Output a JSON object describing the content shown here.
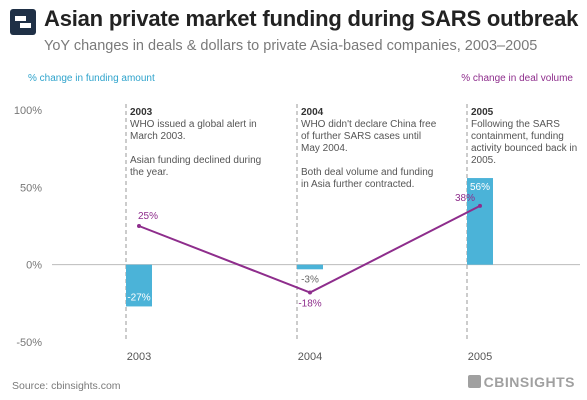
{
  "logo": {
    "name": "cbinsights-logo"
  },
  "header": {
    "title": "Asian private market funding during SARS outbreak",
    "subtitle": "YoY changes in deals & dollars to private Asia-based companies, 2003–2005"
  },
  "axes_legend": {
    "left": "% change in funding amount",
    "right": "% change in deal volume"
  },
  "colors": {
    "bar": "#4bb3d8",
    "line": "#8e2d8c",
    "bar_label": "#ffffff",
    "grid": "#bbbbbb",
    "dashed": "#9a9a9a"
  },
  "chart_data": {
    "type": "bar",
    "categories": [
      "2003",
      "2004",
      "2005"
    ],
    "ylim": [
      -50,
      100
    ],
    "yticks": [
      -50,
      0,
      50,
      100
    ],
    "ytick_labels": [
      "-50%",
      "0%",
      "50%",
      "100%"
    ],
    "series": [
      {
        "type": "bar",
        "values": [
          -27,
          -3,
          56
        ],
        "labels": [
          "-27%",
          "-3%",
          "56%"
        ]
      },
      {
        "type": "line",
        "values": [
          25,
          -18,
          38
        ],
        "labels": [
          "25%",
          "-18%",
          "38%"
        ]
      }
    ],
    "annotations": [
      {
        "year": "2003",
        "lines": [
          "WHO issued a global alert in",
          "March 2003.",
          "",
          "Asian funding declined during",
          "the year."
        ]
      },
      {
        "year": "2004",
        "lines": [
          "WHO didn't declare China free",
          "of further SARS cases until",
          "May 2004.",
          "",
          "Both deal volume and funding",
          "in Asia further contracted."
        ]
      },
      {
        "year": "2005",
        "lines": [
          "Following the SARS",
          "containment, funding",
          "activity bounced back in",
          "2005."
        ]
      }
    ]
  },
  "footer": {
    "source": "Source: cbinsights.com",
    "brand": "CBINSIGHTS"
  }
}
